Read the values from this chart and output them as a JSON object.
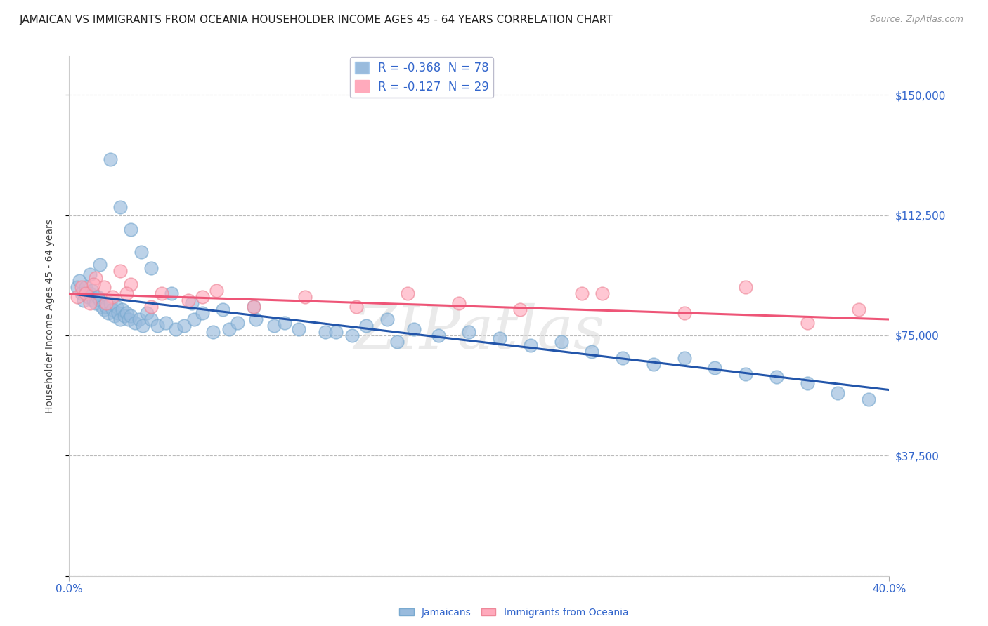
{
  "title": "JAMAICAN VS IMMIGRANTS FROM OCEANIA HOUSEHOLDER INCOME AGES 45 - 64 YEARS CORRELATION CHART",
  "source": "Source: ZipAtlas.com",
  "ylabel": "Householder Income Ages 45 - 64 years",
  "ytick_vals": [
    0,
    37500,
    75000,
    112500,
    150000
  ],
  "ytick_labels": [
    "",
    "$37,500",
    "$75,000",
    "$112,500",
    "$150,000"
  ],
  "xlim": [
    0.0,
    40.0
  ],
  "ylim": [
    0,
    162000
  ],
  "legend1_r": "-0.368",
  "legend1_n": "78",
  "legend2_r": "-0.127",
  "legend2_n": "29",
  "jamaicans_color": "#99BBDD",
  "oceania_color": "#FFAABC",
  "trend_blue": "#2255AA",
  "trend_pink": "#EE5577",
  "background_color": "#FFFFFF",
  "grid_color": "#BBBBBB",
  "tick_color": "#3366CC",
  "watermark": "ZIPatlas",
  "watermark_color": "#DDDDDD",
  "legend_text_color": "#333333",
  "legend_val_color": "#3366CC",
  "title_fontsize": 11,
  "axis_label_fontsize": 10,
  "legend_fontsize": 12,
  "tick_fontsize": 11,
  "bottom_legend_label1": "Jamaicans",
  "bottom_legend_label2": "Immigrants from Oceania",
  "jamaicans_x": [
    0.4,
    0.5,
    0.6,
    0.7,
    0.8,
    0.9,
    1.0,
    1.1,
    1.2,
    1.3,
    1.4,
    1.5,
    1.6,
    1.7,
    1.8,
    1.9,
    2.0,
    2.1,
    2.2,
    2.3,
    2.4,
    2.5,
    2.6,
    2.7,
    2.8,
    2.9,
    3.0,
    3.2,
    3.4,
    3.6,
    3.8,
    4.0,
    4.3,
    4.7,
    5.2,
    5.6,
    6.1,
    6.5,
    7.0,
    7.8,
    8.2,
    9.1,
    10.0,
    11.2,
    12.5,
    13.8,
    14.5,
    15.5,
    16.8,
    18.0,
    19.5,
    21.0,
    22.5,
    24.0,
    25.5,
    27.0,
    28.5,
    30.0,
    31.5,
    33.0,
    34.5,
    36.0,
    37.5,
    39.0,
    1.0,
    1.5,
    2.0,
    2.5,
    3.0,
    3.5,
    4.0,
    5.0,
    6.0,
    7.5,
    9.0,
    10.5,
    13.0,
    16.0
  ],
  "jamaicans_y": [
    90000,
    92000,
    88000,
    86000,
    90000,
    87000,
    88000,
    89000,
    86000,
    85000,
    87000,
    86000,
    84000,
    83000,
    84000,
    82000,
    85000,
    83000,
    81000,
    84000,
    82000,
    80000,
    83000,
    81000,
    82000,
    80000,
    81000,
    79000,
    80000,
    78000,
    82000,
    80000,
    78000,
    79000,
    77000,
    78000,
    80000,
    82000,
    76000,
    77000,
    79000,
    80000,
    78000,
    77000,
    76000,
    75000,
    78000,
    80000,
    77000,
    75000,
    76000,
    74000,
    72000,
    73000,
    70000,
    68000,
    66000,
    68000,
    65000,
    63000,
    62000,
    60000,
    57000,
    55000,
    94000,
    97000,
    130000,
    115000,
    108000,
    101000,
    96000,
    88000,
    85000,
    83000,
    84000,
    79000,
    76000,
    73000
  ],
  "oceania_x": [
    0.4,
    0.6,
    0.8,
    1.0,
    1.3,
    1.7,
    2.1,
    2.5,
    3.0,
    4.5,
    5.8,
    7.2,
    9.0,
    11.5,
    14.0,
    16.5,
    19.0,
    22.0,
    26.0,
    30.0,
    33.0,
    36.0,
    38.5,
    1.2,
    1.8,
    2.8,
    4.0,
    6.5,
    25.0
  ],
  "oceania_y": [
    87000,
    90000,
    88000,
    85000,
    93000,
    90000,
    87000,
    95000,
    91000,
    88000,
    86000,
    89000,
    84000,
    87000,
    84000,
    88000,
    85000,
    83000,
    88000,
    82000,
    90000,
    79000,
    83000,
    91000,
    85000,
    88000,
    84000,
    87000,
    88000
  ]
}
